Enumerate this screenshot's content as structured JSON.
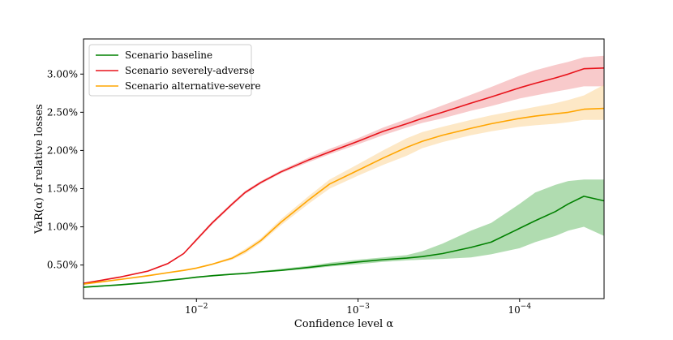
{
  "chart_data": {
    "type": "line",
    "title": "",
    "xlabel": "Confidence level α",
    "ylabel": "VaR(α) of relative losses",
    "x_scale": "log-reversed",
    "xlim": [
      0.05,
      3e-05
    ],
    "ylim": [
      0.06,
      3.46
    ],
    "x_ticks": [
      {
        "value": 0.01,
        "label": "10^-2",
        "base": "10",
        "exp": "−2"
      },
      {
        "value": 0.001,
        "label": "10^-3",
        "base": "10",
        "exp": "−3"
      },
      {
        "value": 0.0001,
        "label": "10^-4",
        "base": "10",
        "exp": "−4"
      }
    ],
    "y_ticks": [
      {
        "value": 0.5,
        "label": "0.50%"
      },
      {
        "value": 1.0,
        "label": "1.00%"
      },
      {
        "value": 1.5,
        "label": "1.50%"
      },
      {
        "value": 2.0,
        "label": "2.00%"
      },
      {
        "value": 2.5,
        "label": "2.50%"
      },
      {
        "value": 3.0,
        "label": "3.00%"
      }
    ],
    "legend_position": "top-left",
    "x": [
      0.05,
      0.03,
      0.02,
      0.015,
      0.012,
      0.01,
      0.008,
      0.006,
      0.005,
      0.004,
      0.003,
      0.002,
      0.0015,
      0.001,
      0.0007,
      0.0005,
      0.0004,
      0.0003,
      0.0002,
      0.00015,
      0.0001,
      8e-05,
      6e-05,
      5e-05,
      4e-05,
      3e-05
    ],
    "series": [
      {
        "name": "Scenario baseline",
        "color": "#008000",
        "band_color": "#7cc47c",
        "values": [
          0.21,
          0.24,
          0.27,
          0.3,
          0.32,
          0.34,
          0.36,
          0.38,
          0.39,
          0.41,
          0.43,
          0.47,
          0.5,
          0.54,
          0.57,
          0.59,
          0.61,
          0.65,
          0.73,
          0.8,
          0.98,
          1.08,
          1.2,
          1.3,
          1.4,
          1.34
        ],
        "lower": [
          0.2,
          0.23,
          0.26,
          0.29,
          0.31,
          0.33,
          0.35,
          0.37,
          0.38,
          0.4,
          0.42,
          0.45,
          0.48,
          0.51,
          0.54,
          0.56,
          0.57,
          0.58,
          0.6,
          0.64,
          0.72,
          0.8,
          0.88,
          0.95,
          1.0,
          0.88
        ],
        "upper": [
          0.22,
          0.25,
          0.28,
          0.31,
          0.33,
          0.35,
          0.37,
          0.39,
          0.4,
          0.42,
          0.45,
          0.49,
          0.53,
          0.57,
          0.6,
          0.63,
          0.68,
          0.78,
          0.95,
          1.05,
          1.3,
          1.45,
          1.55,
          1.6,
          1.62,
          1.62
        ]
      },
      {
        "name": "Scenario severely-adverse",
        "color": "#e8131b",
        "band_color": "#f4a6a8",
        "values": [
          0.26,
          0.34,
          0.42,
          0.52,
          0.65,
          0.83,
          1.05,
          1.3,
          1.45,
          1.58,
          1.72,
          1.88,
          1.98,
          2.12,
          2.25,
          2.35,
          2.42,
          2.5,
          2.62,
          2.7,
          2.82,
          2.88,
          2.95,
          3.0,
          3.07,
          3.08
        ],
        "lower": [
          0.25,
          0.33,
          0.41,
          0.51,
          0.64,
          0.81,
          1.03,
          1.28,
          1.43,
          1.56,
          1.7,
          1.85,
          1.95,
          2.08,
          2.2,
          2.3,
          2.36,
          2.42,
          2.52,
          2.58,
          2.68,
          2.72,
          2.77,
          2.8,
          2.84,
          2.84
        ],
        "upper": [
          0.27,
          0.35,
          0.43,
          0.53,
          0.66,
          0.85,
          1.07,
          1.32,
          1.47,
          1.6,
          1.74,
          1.91,
          2.02,
          2.16,
          2.3,
          2.41,
          2.49,
          2.59,
          2.73,
          2.83,
          2.98,
          3.05,
          3.12,
          3.16,
          3.22,
          3.24
        ]
      },
      {
        "name": "Scenario alternative-severe",
        "color": "#ffa500",
        "band_color": "#fcd9a0",
        "values": [
          0.25,
          0.31,
          0.36,
          0.4,
          0.43,
          0.46,
          0.51,
          0.59,
          0.68,
          0.82,
          1.06,
          1.36,
          1.56,
          1.74,
          1.9,
          2.04,
          2.12,
          2.2,
          2.29,
          2.35,
          2.42,
          2.45,
          2.48,
          2.5,
          2.54,
          2.55
        ],
        "lower": [
          0.24,
          0.3,
          0.35,
          0.39,
          0.42,
          0.45,
          0.5,
          0.57,
          0.65,
          0.79,
          1.02,
          1.31,
          1.5,
          1.67,
          1.81,
          1.93,
          2.03,
          2.11,
          2.2,
          2.25,
          2.31,
          2.33,
          2.35,
          2.37,
          2.4,
          2.4
        ],
        "upper": [
          0.26,
          0.32,
          0.37,
          0.41,
          0.44,
          0.47,
          0.52,
          0.61,
          0.71,
          0.85,
          1.1,
          1.41,
          1.62,
          1.82,
          2.0,
          2.16,
          2.24,
          2.31,
          2.4,
          2.46,
          2.53,
          2.57,
          2.62,
          2.66,
          2.72,
          2.86
        ]
      }
    ]
  }
}
